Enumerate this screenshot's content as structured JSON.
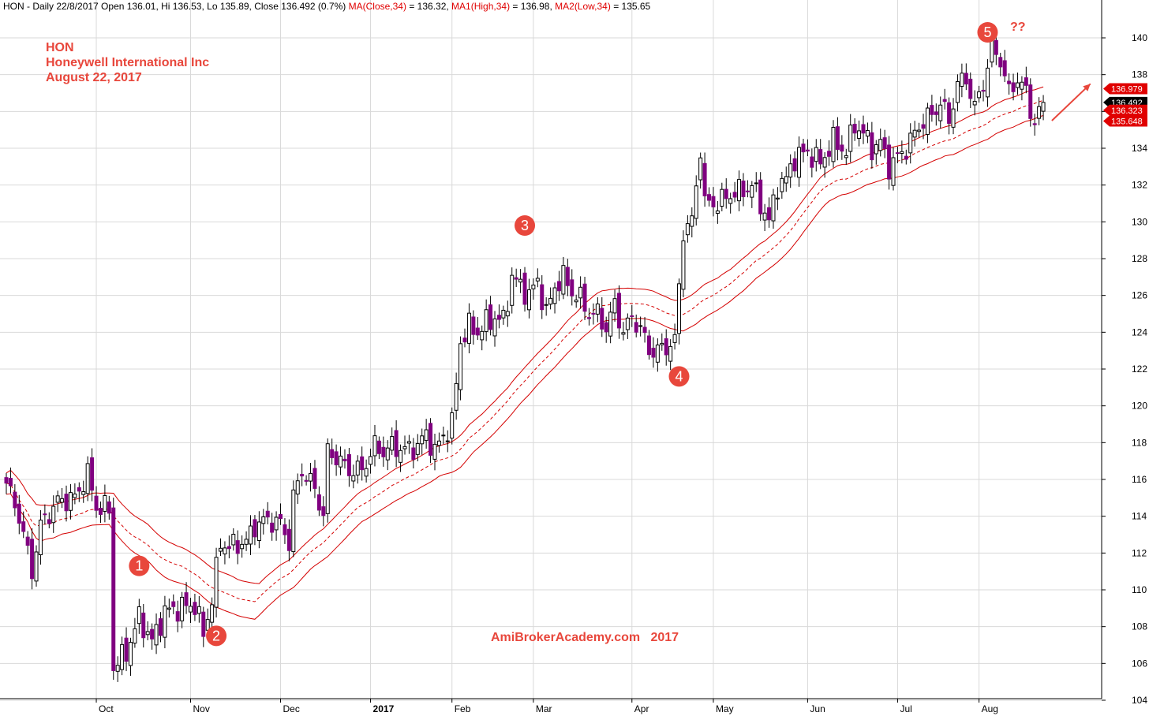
{
  "header": {
    "prefix": "HON - Daily 22/8/2017 Open 136.01, Hi 136.53, Lo 135.89, Close 136.492 (0.7%)",
    "ma_label": "MA(Close,34)",
    "ma_value": " = 136.32, ",
    "ma1_label": "MA1(High,34)",
    "ma1_value": " = 136.98, ",
    "ma2_label": "MA2(Low,34)",
    "ma2_value": " = 135.65"
  },
  "title": {
    "ticker": "HON",
    "company": "Honeywell International Inc",
    "date": "August 22, 2017"
  },
  "watermark": "AmiBrokerAcademy.com   2017",
  "question_marks": "??",
  "colors": {
    "down_candle": "#800080",
    "up_candle": "#ffffff",
    "candle_outline": "#000000",
    "ma_line": "#d40000",
    "marker": "#e8473c",
    "label_red": "#e00000",
    "label_black": "#000000",
    "grid": "#d9d9d9"
  },
  "chart_data": {
    "type": "candlestick",
    "ylim": [
      104,
      141
    ],
    "yticks": [
      104,
      106,
      108,
      110,
      112,
      114,
      116,
      118,
      120,
      122,
      124,
      126,
      128,
      130,
      132,
      134,
      136,
      138,
      140
    ],
    "months": [
      {
        "label": "Oct",
        "day": 21
      },
      {
        "label": "Nov",
        "day": 43
      },
      {
        "label": "Dec",
        "day": 64
      },
      {
        "label": "2017",
        "day": 85,
        "bold": true
      },
      {
        "label": "Feb",
        "day": 104
      },
      {
        "label": "Mar",
        "day": 123
      },
      {
        "label": "Apr",
        "day": 146
      },
      {
        "label": "May",
        "day": 165
      },
      {
        "label": "Jun",
        "day": 187
      },
      {
        "label": "Jul",
        "day": 208
      },
      {
        "label": "Aug",
        "day": 227
      }
    ],
    "price_labels": [
      {
        "value": 136.979,
        "text": "136.979",
        "color": "red"
      },
      {
        "value": 136.492,
        "text": "136.492",
        "color": "black"
      },
      {
        "value": 136.323,
        "text": "136.323",
        "color": "red"
      },
      {
        "value": 135.648,
        "text": "135.648",
        "color": "red"
      }
    ],
    "wave_markers": [
      {
        "label": "1",
        "day": 31,
        "price": 111.3
      },
      {
        "label": "2",
        "day": 49,
        "price": 107.5
      },
      {
        "label": "3",
        "day": 121,
        "price": 129.8
      },
      {
        "label": "4",
        "day": 157,
        "price": 121.6
      },
      {
        "label": "5",
        "day": 229,
        "price": 140.3
      }
    ],
    "trend_arrow": {
      "from_day": 244,
      "from_price": 135.5,
      "to_day": 253,
      "to_price": 137.5
    },
    "anchors": [
      [
        0,
        115.8
      ],
      [
        3,
        114.0
      ],
      [
        6,
        111.0
      ],
      [
        8,
        113.5
      ],
      [
        12,
        114.8
      ],
      [
        16,
        115.0
      ],
      [
        19,
        116.3
      ],
      [
        21,
        114.5
      ],
      [
        24,
        114.4
      ],
      [
        25,
        105.8
      ],
      [
        28,
        106.6
      ],
      [
        31,
        108.5
      ],
      [
        34,
        107.2
      ],
      [
        37,
        108.8
      ],
      [
        40,
        109.0
      ],
      [
        44,
        109.2
      ],
      [
        46,
        107.6
      ],
      [
        48,
        109.5
      ],
      [
        50,
        112.6
      ],
      [
        52,
        112.3
      ],
      [
        54,
        112.5
      ],
      [
        56,
        112.6
      ],
      [
        58,
        113.5
      ],
      [
        61,
        113.8
      ],
      [
        64,
        113.6
      ],
      [
        66,
        112.6
      ],
      [
        67,
        115.0
      ],
      [
        69,
        116.5
      ],
      [
        72,
        115.5
      ],
      [
        74,
        114.0
      ],
      [
        75,
        117.5
      ],
      [
        77,
        117.2
      ],
      [
        80,
        116.5
      ],
      [
        83,
        116.5
      ],
      [
        86,
        117.8
      ],
      [
        88,
        117.5
      ],
      [
        90,
        117.8
      ],
      [
        93,
        117.6
      ],
      [
        96,
        117.8
      ],
      [
        98,
        118.5
      ],
      [
        100,
        117.5
      ],
      [
        102,
        118.4
      ],
      [
        104,
        119.0
      ],
      [
        106,
        123.5
      ],
      [
        108,
        124.3
      ],
      [
        110,
        124.0
      ],
      [
        112,
        124.5
      ],
      [
        114,
        124.8
      ],
      [
        116,
        124.6
      ],
      [
        118,
        127.0
      ],
      [
        120,
        126.5
      ],
      [
        122,
        126.0
      ],
      [
        124,
        126.8
      ],
      [
        126,
        125.0
      ],
      [
        128,
        126.5
      ],
      [
        130,
        127.0
      ],
      [
        132,
        126.2
      ],
      [
        134,
        125.8
      ],
      [
        136,
        125.0
      ],
      [
        138,
        125.0
      ],
      [
        140,
        124.2
      ],
      [
        142,
        125.5
      ],
      [
        144,
        124.0
      ],
      [
        146,
        124.8
      ],
      [
        148,
        124.2
      ],
      [
        150,
        123.0
      ],
      [
        152,
        123.0
      ],
      [
        154,
        123.2
      ],
      [
        156,
        123.5
      ],
      [
        158,
        129.5
      ],
      [
        160,
        130.0
      ],
      [
        162,
        134.0
      ],
      [
        163,
        131.0
      ],
      [
        166,
        131.0
      ],
      [
        169,
        131.5
      ],
      [
        172,
        131.7
      ],
      [
        174,
        132.0
      ],
      [
        176,
        131.0
      ],
      [
        178,
        130.0
      ],
      [
        180,
        132.0
      ],
      [
        182,
        132.3
      ],
      [
        184,
        133.5
      ],
      [
        187,
        133.8
      ],
      [
        190,
        133.2
      ],
      [
        193,
        134.4
      ],
      [
        196,
        133.8
      ],
      [
        198,
        135.3
      ],
      [
        200,
        134.8
      ],
      [
        202,
        134.0
      ],
      [
        204,
        134.3
      ],
      [
        206,
        133.0
      ],
      [
        208,
        133.5
      ],
      [
        210,
        134.0
      ],
      [
        212,
        134.8
      ],
      [
        214,
        135.5
      ],
      [
        216,
        135.8
      ],
      [
        218,
        136.5
      ],
      [
        220,
        135.5
      ],
      [
        222,
        137.5
      ],
      [
        224,
        137.8
      ],
      [
        226,
        136.2
      ],
      [
        228,
        137.5
      ],
      [
        230,
        139.5
      ],
      [
        232,
        138.8
      ],
      [
        234,
        137.0
      ],
      [
        236,
        137.8
      ],
      [
        238,
        137.0
      ],
      [
        240,
        135.3
      ],
      [
        241,
        136.0
      ],
      [
        242,
        136.49
      ]
    ]
  }
}
